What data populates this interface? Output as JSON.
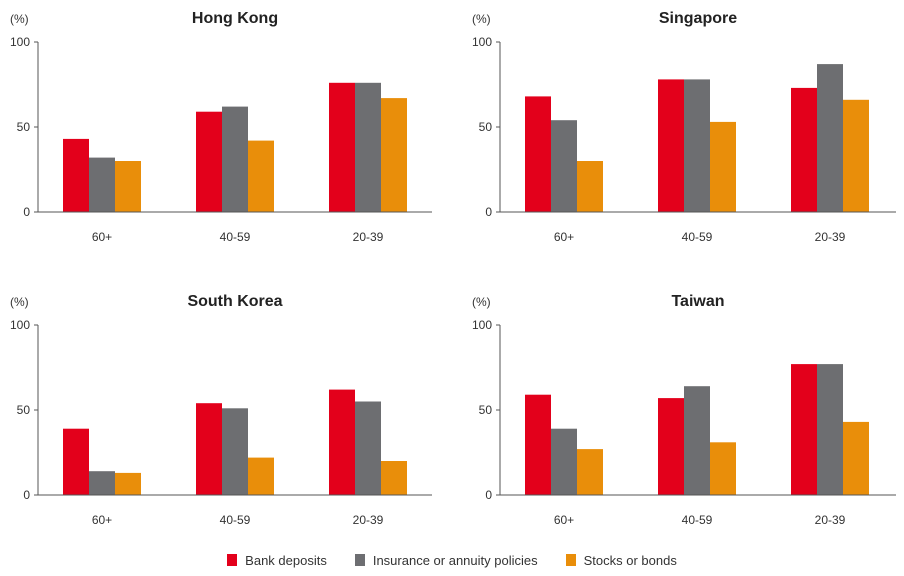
{
  "chart_data": [
    {
      "type": "bar",
      "title": "Hong Kong",
      "ylabel": "(%)",
      "categories": [
        "60+",
        "40-59",
        "20-39"
      ],
      "yticks": [
        "0",
        "50",
        "100"
      ],
      "ylim": [
        0,
        100
      ],
      "series": [
        {
          "name": "Bank deposits",
          "values": [
            43,
            59,
            76
          ]
        },
        {
          "name": "Insurance or annuity policies",
          "values": [
            32,
            62,
            76
          ]
        },
        {
          "name": "Stocks or bonds",
          "values": [
            30,
            42,
            67
          ]
        }
      ]
    },
    {
      "type": "bar",
      "title": "Singapore",
      "ylabel": "(%)",
      "categories": [
        "60+",
        "40-59",
        "20-39"
      ],
      "yticks": [
        "0",
        "50",
        "100"
      ],
      "ylim": [
        0,
        100
      ],
      "series": [
        {
          "name": "Bank deposits",
          "values": [
            68,
            78,
            73
          ]
        },
        {
          "name": "Insurance or annuity policies",
          "values": [
            54,
            78,
            87
          ]
        },
        {
          "name": "Stocks or bonds",
          "values": [
            30,
            53,
            66
          ]
        }
      ]
    },
    {
      "type": "bar",
      "title": "South Korea",
      "ylabel": "(%)",
      "categories": [
        "60+",
        "40-59",
        "20-39"
      ],
      "yticks": [
        "0",
        "50",
        "100"
      ],
      "ylim": [
        0,
        100
      ],
      "series": [
        {
          "name": "Bank deposits",
          "values": [
            39,
            54,
            62
          ]
        },
        {
          "name": "Insurance or annuity policies",
          "values": [
            14,
            51,
            55
          ]
        },
        {
          "name": "Stocks or bonds",
          "values": [
            13,
            22,
            20
          ]
        }
      ]
    },
    {
      "type": "bar",
      "title": "Taiwan",
      "ylabel": "(%)",
      "categories": [
        "60+",
        "40-59",
        "20-39"
      ],
      "yticks": [
        "0",
        "50",
        "100"
      ],
      "ylim": [
        0,
        100
      ],
      "series": [
        {
          "name": "Bank deposits",
          "values": [
            59,
            57,
            77
          ]
        },
        {
          "name": "Insurance or annuity policies",
          "values": [
            39,
            64,
            77
          ]
        },
        {
          "name": "Stocks or bonds",
          "values": [
            27,
            31,
            43
          ]
        }
      ]
    }
  ],
  "legend": [
    {
      "label": "Bank deposits",
      "color": "#e3001b"
    },
    {
      "label": "Insurance or annuity policies",
      "color": "#6d6e71"
    },
    {
      "label": "Stocks or bonds",
      "color": "#e98e0a"
    }
  ],
  "colors": {
    "Bank deposits": "#e3001b",
    "Insurance or annuity policies": "#6d6e71",
    "Stocks or bonds": "#e98e0a"
  }
}
